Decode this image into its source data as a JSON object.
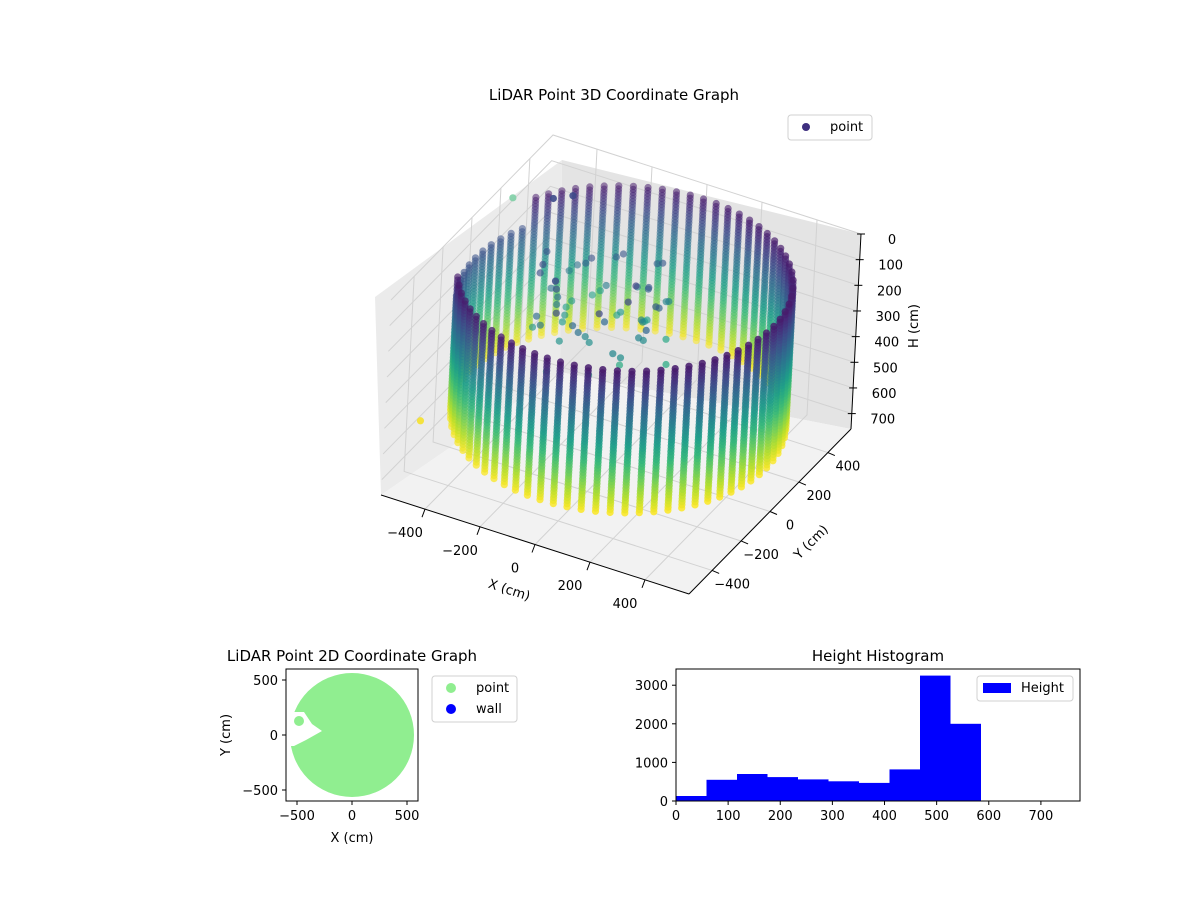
{
  "chart_data": [
    {
      "type": "scatter3d",
      "title": "LiDAR Point 3D Coordinate Graph",
      "xlabel": "X (cm)",
      "ylabel": "Y (cm)",
      "zlabel": "H (cm)",
      "legend": [
        "point"
      ],
      "legend_position": "top-right",
      "colormap": "viridis",
      "xticks": [
        "−400",
        "−200",
        "0",
        "200",
        "400"
      ],
      "yticks": [
        "400",
        "200",
        "0",
        "−200",
        "−400"
      ],
      "zticks": [
        "0",
        "100",
        "200",
        "300",
        "400",
        "500",
        "600",
        "700"
      ],
      "xlim": [
        -560,
        560
      ],
      "ylim": [
        -560,
        560
      ],
      "zlim": [
        0,
        760
      ],
      "z_inverted": true,
      "shape": "cylindrical wall of points, radius ~540 cm, heights 0-600 cm, with a gap near x=-500",
      "grid": true
    },
    {
      "type": "scatter",
      "title": "LiDAR Point 2D Coordinate Graph",
      "xlabel": "X (cm)",
      "ylabel": "Y (cm)",
      "xticks": [
        "−500",
        "0",
        "500"
      ],
      "yticks": [
        "500",
        "0",
        "−500"
      ],
      "xlim": [
        -600,
        600
      ],
      "ylim": [
        -600,
        600
      ],
      "series": [
        {
          "name": "point",
          "color": "#90ee90",
          "shape": "filled disc radius ~540 cm with notch on left side"
        },
        {
          "name": "wall",
          "color": "#0000ff"
        }
      ],
      "legend_position": "outside-right"
    },
    {
      "type": "histogram",
      "title": "Height Histogram",
      "series": [
        {
          "name": "Height",
          "color": "#0000ff"
        }
      ],
      "bin_edges": [
        0,
        58.5,
        117,
        175.5,
        234,
        292.5,
        351,
        409.5,
        468,
        526.5,
        585
      ],
      "counts": [
        130,
        550,
        700,
        620,
        560,
        510,
        470,
        820,
        3250,
        2000
      ],
      "xticks": [
        "0",
        "100",
        "200",
        "300",
        "400",
        "500",
        "600",
        "700"
      ],
      "yticks": [
        "0",
        "1000",
        "2000",
        "3000"
      ],
      "xlim": [
        0,
        775
      ],
      "ylim": [
        0,
        3420
      ],
      "legend_position": "top-right"
    }
  ]
}
